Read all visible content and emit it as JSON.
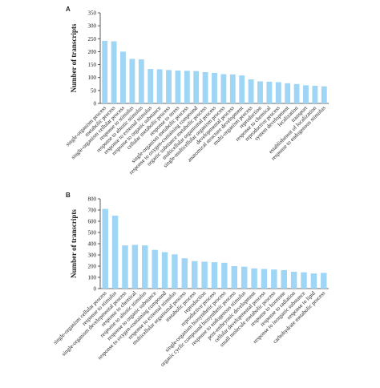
{
  "chart_data": [
    {
      "type": "bar",
      "panel": "A",
      "y_label": "Number of transcripts",
      "color": "#9fd5f5",
      "categories": [
        "single-organism process",
        "metabolic process",
        "single-organism cellular process",
        "response to stimulus",
        "response to abiotic stimulus",
        "response to external stimulus",
        "response to organic substance",
        "cellular metabolic process",
        "response to stress",
        "single-organism metabolic process",
        "response to oxygen-containing compound",
        "organic substance metabolic process",
        "multicellular organismal process",
        "single-multicellular organism process",
        "developmental process",
        "anatomical structure development",
        "multi-organism process",
        "reproduction",
        "response to chemical",
        "reproductive process",
        "system development",
        "localization",
        "transport",
        "establishment of localization",
        "response to endogenous stimulus"
      ],
      "values": [
        242,
        240,
        200,
        172,
        170,
        133,
        132,
        129,
        127,
        126,
        125,
        121,
        118,
        113,
        112,
        108,
        93,
        85,
        84,
        82,
        78,
        75,
        70,
        68,
        66
      ],
      "ylim": [
        0,
        350
      ],
      "yticks": [
        0,
        50,
        100,
        150,
        200,
        250,
        300,
        350
      ],
      "grid": false
    },
    {
      "type": "bar",
      "panel": "B",
      "y_label": "Number of transcripts",
      "color": "#9fd5f5",
      "categories": [
        "single-organism cellular process",
        "response to stimulus",
        "single-organism developmental process",
        "response to chemical",
        "response to abiotic stimulus",
        "response to organic substance",
        "response to oxygen-containing compound",
        "response to external stimulus",
        "multicellular organismal process",
        "metabolic process",
        "reproduction",
        "reproductive process",
        "single-organism biosynthetic process",
        "organic cyclic compound biosynthetic process",
        "response to endogenous stimulus",
        "post-embryonic development",
        "cellular developmental process",
        "small molecule metabolic process",
        "response to hormone",
        "response to radiation",
        "response to inorganic substance",
        "response to lipid",
        "carbohydrate metabolic process"
      ],
      "values": [
        710,
        650,
        385,
        390,
        385,
        345,
        325,
        305,
        270,
        245,
        240,
        235,
        230,
        200,
        195,
        180,
        175,
        170,
        165,
        150,
        145,
        135,
        140
      ],
      "ylim": [
        0,
        800
      ],
      "yticks": [
        0,
        100,
        200,
        300,
        400,
        500,
        600,
        700,
        800
      ],
      "grid": false
    }
  ]
}
